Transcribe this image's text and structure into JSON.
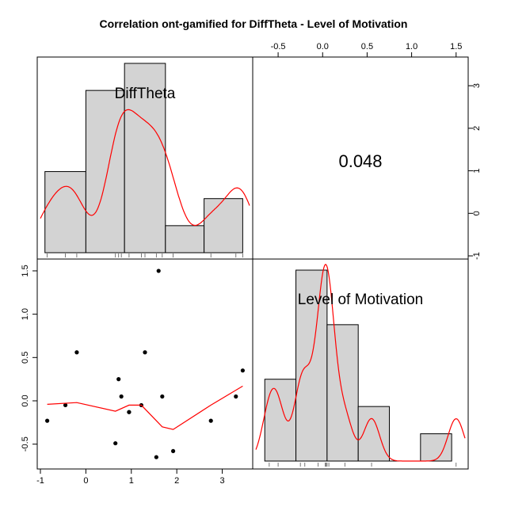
{
  "chart_data": {
    "type": "pairs",
    "title": "Correlation ont-gamified for DiffTheta - Level of Motivation",
    "variables": [
      "DiffTheta",
      "Level of Motivation"
    ],
    "correlation_label": "0.048",
    "colors": {
      "bar_fill": "#d3d3d3",
      "curve": "#ff0000",
      "points": "#000000"
    },
    "difftheta": {
      "range": [
        -1.0,
        3.6
      ],
      "ticks": [
        "-1",
        "0",
        "1",
        "2",
        "3"
      ],
      "tick_values": [
        -1,
        0,
        1,
        2,
        3
      ]
    },
    "motivation": {
      "range": [
        -0.75,
        1.6
      ],
      "ticks": [
        "-0.5",
        "0.0",
        "0.5",
        "1.0",
        "1.5"
      ],
      "tick_values": [
        -0.5,
        0.0,
        0.5,
        1.0,
        1.5
      ],
      "right_ticks": [
        "-1",
        "0",
        "1",
        "2",
        "3"
      ],
      "right_tick_values": [
        -1,
        0,
        1,
        2,
        3
      ]
    },
    "hist_difftheta": {
      "breaks": [
        -0.9,
        0.0,
        0.85,
        1.75,
        2.6,
        3.45
      ],
      "counts": [
        3,
        6,
        7,
        1,
        2
      ],
      "rug": [
        -0.85,
        -0.45,
        -0.2,
        0.65,
        0.72,
        0.78,
        0.95,
        1.22,
        1.3,
        1.55,
        1.68,
        1.92,
        2.75,
        3.3,
        3.45
      ]
    },
    "hist_motivation": {
      "breaks": [
        -0.65,
        -0.3,
        0.05,
        0.4,
        0.75,
        1.1,
        1.45
      ],
      "counts": [
        3,
        7,
        5,
        2,
        0,
        1
      ],
      "rug": [
        -0.6,
        -0.5,
        -0.25,
        -0.2,
        -0.05,
        0.03,
        0.04,
        0.05,
        0.07,
        0.25,
        0.55,
        1.5
      ]
    },
    "scatter": {
      "points": [
        {
          "x": -0.85,
          "y": -0.23
        },
        {
          "x": -0.45,
          "y": -0.05
        },
        {
          "x": -0.2,
          "y": 0.56
        },
        {
          "x": 0.65,
          "y": -0.49
        },
        {
          "x": 0.72,
          "y": 0.25
        },
        {
          "x": 0.78,
          "y": 0.05
        },
        {
          "x": 0.95,
          "y": -0.13
        },
        {
          "x": 0.95,
          "y": -0.13
        },
        {
          "x": 1.22,
          "y": -0.05
        },
        {
          "x": 1.3,
          "y": 0.56
        },
        {
          "x": 1.55,
          "y": -0.65
        },
        {
          "x": 1.6,
          "y": 1.5
        },
        {
          "x": 1.68,
          "y": 0.05
        },
        {
          "x": 1.92,
          "y": -0.58
        },
        {
          "x": 2.75,
          "y": -0.23
        },
        {
          "x": 3.3,
          "y": 0.05
        },
        {
          "x": 3.45,
          "y": 0.35
        }
      ],
      "smooth": [
        {
          "x": -0.85,
          "y": -0.04
        },
        {
          "x": -0.2,
          "y": -0.02
        },
        {
          "x": 0.65,
          "y": -0.12
        },
        {
          "x": 0.95,
          "y": -0.05
        },
        {
          "x": 1.22,
          "y": -0.05
        },
        {
          "x": 1.68,
          "y": -0.3
        },
        {
          "x": 1.92,
          "y": -0.33
        },
        {
          "x": 2.75,
          "y": -0.05
        },
        {
          "x": 3.45,
          "y": 0.17
        }
      ]
    }
  }
}
